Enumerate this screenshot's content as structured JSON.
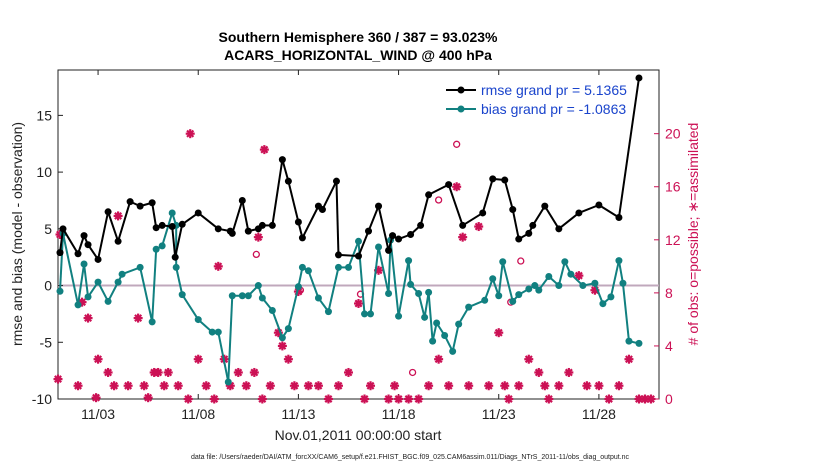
{
  "chart_data": {
    "type": "line",
    "title": "Southern Hemisphere 360 / 387 = 93.023%",
    "subtitle": "ACARS_HORIZONTAL_WIND @ 400 hPa",
    "xlabel": "Nov.01,2011 00:00:00 start",
    "ylabel": "rmse and bias (model - observation)",
    "ylabel_right": "# of obs: o=possible; ∗=assimilated",
    "xlim": [
      1.0,
      31.0
    ],
    "ylim": [
      -10,
      19
    ],
    "ylim_right": [
      0,
      24.8
    ],
    "x_tick_values": [
      3,
      8,
      13,
      18,
      23,
      28
    ],
    "x_tick_labels": [
      "11/03",
      "11/08",
      "11/13",
      "11/18",
      "11/23",
      "11/28"
    ],
    "y_ticks": [
      -10,
      -5,
      0,
      5,
      10,
      15
    ],
    "y_ticks_right": [
      0,
      4,
      8,
      12,
      16,
      20
    ],
    "legend_position": "top-right",
    "grid": false,
    "colors": {
      "rmse": "#000000",
      "bias": "#118080",
      "obs": "#cc1155",
      "zero_line": "#c0a8bc"
    },
    "series": [
      {
        "name": "rmse grand pr = 5.1365",
        "values": [
          [
            1.1,
            2.9
          ],
          [
            1.25,
            5.0
          ],
          [
            2.0,
            2.8
          ],
          [
            2.3,
            4.4
          ],
          [
            2.5,
            3.6
          ],
          [
            3.0,
            2.3
          ],
          [
            3.5,
            6.5
          ],
          [
            4.0,
            3.9
          ],
          [
            4.6,
            7.4
          ],
          [
            5.1,
            7.0
          ],
          [
            5.7,
            7.3
          ],
          [
            5.9,
            5.1
          ],
          [
            6.2,
            5.3
          ],
          [
            6.7,
            5.2
          ],
          [
            6.85,
            2.5
          ],
          [
            7.2,
            5.4
          ],
          [
            8.0,
            6.4
          ],
          [
            9.0,
            5.0
          ],
          [
            9.6,
            4.8
          ],
          [
            9.7,
            4.6
          ],
          [
            10.2,
            7.5
          ],
          [
            10.5,
            4.8
          ],
          [
            11.0,
            5.0
          ],
          [
            11.2,
            5.3
          ],
          [
            11.7,
            5.3
          ],
          [
            12.2,
            11.1
          ],
          [
            12.5,
            9.2
          ],
          [
            13.0,
            5.6
          ],
          [
            13.2,
            4.2
          ],
          [
            14.0,
            7.0
          ],
          [
            14.2,
            6.7
          ],
          [
            14.9,
            9.2
          ],
          [
            15.0,
            2.7
          ],
          [
            16.0,
            2.6
          ],
          [
            16.5,
            4.8
          ],
          [
            17.0,
            7.0
          ],
          [
            17.5,
            3.1
          ],
          [
            17.7,
            4.4
          ],
          [
            18.0,
            4.1
          ],
          [
            18.6,
            4.5
          ],
          [
            19.1,
            5.3
          ],
          [
            19.5,
            8.0
          ],
          [
            20.5,
            8.9
          ],
          [
            21.2,
            5.3
          ],
          [
            22.2,
            6.4
          ],
          [
            22.7,
            9.4
          ],
          [
            23.3,
            9.3
          ],
          [
            23.7,
            6.7
          ],
          [
            24.0,
            4.1
          ],
          [
            24.5,
            4.6
          ],
          [
            24.7,
            5.3
          ],
          [
            25.3,
            7.0
          ],
          [
            26.0,
            5.0
          ],
          [
            27.0,
            6.4
          ],
          [
            28.0,
            7.1
          ],
          [
            29.0,
            6.0
          ],
          [
            30.0,
            18.3
          ]
        ]
      },
      {
        "name": "bias grand pr = -1.0863",
        "values": [
          [
            1.1,
            -0.5
          ],
          [
            1.25,
            4.6
          ],
          [
            2.0,
            -1.7
          ],
          [
            2.3,
            1.9
          ],
          [
            2.5,
            -1.0
          ],
          [
            3.0,
            0.3
          ],
          [
            3.5,
            -1.4
          ],
          [
            4.0,
            0.3
          ],
          [
            4.2,
            1.0
          ],
          [
            5.1,
            1.6
          ],
          [
            5.7,
            -3.2
          ],
          [
            5.9,
            3.2
          ],
          [
            6.2,
            3.5
          ],
          [
            6.7,
            6.4
          ],
          [
            6.9,
            5.3
          ],
          [
            6.9,
            1.6
          ],
          [
            7.2,
            -0.8
          ],
          [
            8.0,
            -3.0
          ],
          [
            8.7,
            -4.1
          ],
          [
            9.0,
            -4.1
          ],
          [
            9.5,
            -8.5
          ],
          [
            9.7,
            -0.9
          ],
          [
            10.2,
            -0.9
          ],
          [
            10.5,
            -0.9
          ],
          [
            11.0,
            0.0
          ],
          [
            11.2,
            -1.1
          ],
          [
            11.7,
            -2.2
          ],
          [
            12.2,
            -4.6
          ],
          [
            12.5,
            -3.8
          ],
          [
            13.0,
            -0.1
          ],
          [
            13.2,
            1.6
          ],
          [
            13.5,
            1.3
          ],
          [
            14.0,
            -1.1
          ],
          [
            14.5,
            -2.3
          ],
          [
            15.0,
            1.6
          ],
          [
            15.5,
            1.6
          ],
          [
            16.0,
            3.9
          ],
          [
            16.3,
            -2.5
          ],
          [
            16.6,
            -2.5
          ],
          [
            17.0,
            3.4
          ],
          [
            17.5,
            -0.7
          ],
          [
            17.6,
            4.0
          ],
          [
            18.0,
            -2.7
          ],
          [
            18.5,
            2.2
          ],
          [
            18.6,
            0.1
          ],
          [
            19.0,
            -0.7
          ],
          [
            19.3,
            -2.8
          ],
          [
            19.5,
            -0.6
          ],
          [
            19.7,
            -4.9
          ],
          [
            19.9,
            -3.3
          ],
          [
            20.3,
            -4.4
          ],
          [
            20.7,
            -5.8
          ],
          [
            21.0,
            -3.4
          ],
          [
            21.5,
            -1.9
          ],
          [
            22.3,
            -1.3
          ],
          [
            22.7,
            0.6
          ],
          [
            23.0,
            -0.9
          ],
          [
            23.2,
            2.1
          ],
          [
            23.7,
            -1.4
          ],
          [
            24.0,
            -0.8
          ],
          [
            24.5,
            -0.3
          ],
          [
            24.8,
            0.0
          ],
          [
            25.0,
            -0.4
          ],
          [
            25.5,
            0.8
          ],
          [
            26.0,
            0.0
          ],
          [
            26.3,
            2.1
          ],
          [
            26.6,
            1.0
          ],
          [
            27.2,
            0.0
          ],
          [
            27.8,
            0.2
          ],
          [
            28.2,
            -1.6
          ],
          [
            28.6,
            -1.0
          ],
          [
            29.0,
            2.2
          ],
          [
            29.2,
            0.2
          ],
          [
            29.5,
            -4.9
          ],
          [
            30.0,
            -5.1
          ]
        ]
      },
      {
        "name": "obs assimilated",
        "axis": "right",
        "values": [
          [
            1.0,
            1.5
          ],
          [
            1.1,
            12.4
          ],
          [
            2.0,
            1.0
          ],
          [
            2.2,
            7.3
          ],
          [
            2.5,
            6.1
          ],
          [
            2.9,
            0.1
          ],
          [
            3.0,
            3.0
          ],
          [
            3.5,
            2.0
          ],
          [
            3.8,
            1.0
          ],
          [
            4.0,
            13.8
          ],
          [
            4.5,
            1.0
          ],
          [
            5.0,
            6.1
          ],
          [
            5.3,
            1.0
          ],
          [
            5.5,
            0.1
          ],
          [
            5.8,
            2.0
          ],
          [
            6.0,
            2.0
          ],
          [
            6.3,
            1.0
          ],
          [
            6.5,
            2.0
          ],
          [
            7.0,
            1.0
          ],
          [
            7.5,
            0.0
          ],
          [
            7.6,
            20.0
          ],
          [
            8.0,
            3.0
          ],
          [
            8.4,
            1.0
          ],
          [
            8.8,
            0.0
          ],
          [
            9.0,
            10.0
          ],
          [
            9.3,
            3.0
          ],
          [
            9.6,
            1.0
          ],
          [
            10.0,
            2.0
          ],
          [
            10.4,
            1.0
          ],
          [
            10.8,
            2.0
          ],
          [
            11.0,
            12.2
          ],
          [
            11.2,
            0.0
          ],
          [
            11.3,
            18.8
          ],
          [
            11.6,
            1.0
          ],
          [
            12.0,
            5.0
          ],
          [
            12.2,
            4.0
          ],
          [
            12.5,
            3.0
          ],
          [
            12.8,
            1.0
          ],
          [
            13.0,
            8.1
          ],
          [
            13.5,
            1.0
          ],
          [
            14.0,
            1.0
          ],
          [
            14.5,
            0.0
          ],
          [
            15.0,
            1.0
          ],
          [
            15.5,
            2.0
          ],
          [
            16.0,
            7.2
          ],
          [
            16.3,
            0.0
          ],
          [
            16.6,
            1.0
          ],
          [
            17.0,
            9.7
          ],
          [
            17.5,
            0.0
          ],
          [
            17.8,
            1.0
          ],
          [
            18.0,
            0.0
          ],
          [
            18.5,
            0.0
          ],
          [
            19.0,
            0.0
          ],
          [
            19.5,
            1.0
          ],
          [
            20.0,
            3.0
          ],
          [
            20.5,
            1.0
          ],
          [
            20.9,
            16.0
          ],
          [
            21.2,
            12.2
          ],
          [
            21.5,
            1.0
          ],
          [
            22.0,
            13.0
          ],
          [
            22.5,
            1.0
          ],
          [
            23.0,
            5.0
          ],
          [
            23.3,
            1.0
          ],
          [
            23.5,
            0.0
          ],
          [
            24.0,
            1.0
          ],
          [
            24.5,
            3.0
          ],
          [
            25.0,
            2.0
          ],
          [
            25.3,
            1.0
          ],
          [
            25.5,
            0.0
          ],
          [
            26.0,
            1.0
          ],
          [
            26.5,
            2.0
          ],
          [
            27.0,
            9.3
          ],
          [
            27.4,
            1.0
          ],
          [
            27.8,
            8.2
          ],
          [
            28.0,
            1.0
          ],
          [
            28.5,
            0.0
          ],
          [
            29.0,
            1.0
          ],
          [
            29.5,
            3.0
          ],
          [
            30.0,
            0.0
          ],
          [
            30.3,
            0.0
          ],
          [
            30.6,
            0.0
          ]
        ]
      },
      {
        "name": "obs possible",
        "axis": "right",
        "values": [
          [
            10.9,
            10.9
          ],
          [
            13.1,
            8.2
          ],
          [
            16.1,
            7.9
          ],
          [
            18.7,
            2.0
          ],
          [
            20.0,
            15.0
          ],
          [
            20.9,
            19.2
          ],
          [
            23.6,
            7.3
          ],
          [
            24.1,
            10.4
          ]
        ]
      }
    ]
  },
  "footer_text": "data file: /Users/raeder/DAI/ATM_forcXX/CAM6_setup/f.e21.FHIST_BGC.f09_025.CAM6assim.011/Diags_NTrS_2011-11/obs_diag_output.nc"
}
